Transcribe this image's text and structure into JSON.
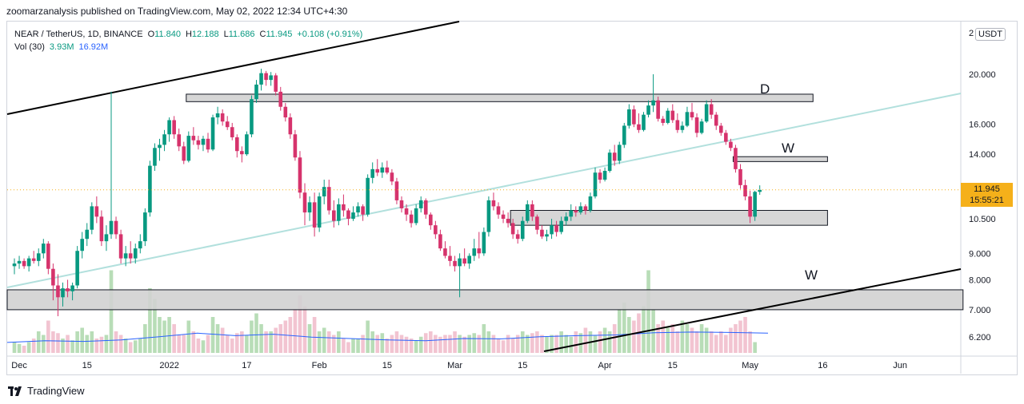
{
  "header": {
    "published_line": "zoomarzanalysis published on TradingView.com, May 02, 2022 12:34 UTC+4:30"
  },
  "legend": {
    "symbol": "NEAR / TetherUS, 1D, BINANCE",
    "open_label": "O",
    "open": "11.840",
    "high_label": "H",
    "high": "12.188",
    "low_label": "L",
    "low": "11.686",
    "close_label": "C",
    "close": "11.945",
    "change": "+0.108 (+0.91%)",
    "vol_label": "Vol (30)",
    "vol_value": "3.93M",
    "vol_ma": "16.92M"
  },
  "price_axis": {
    "unit": "USDT",
    "digit": "2",
    "current_price": "11.945",
    "countdown": "15:55:21"
  },
  "footer": {
    "brand": "TradingView"
  },
  "colors": {
    "up": "#089981",
    "down": "#d6336c",
    "up_vol": "#b8ddb7",
    "down_vol": "#f2c4d1",
    "trend_channel": "#000000",
    "mid_trend": "#b2e0dd",
    "zone_fill": "#d1d1d1",
    "vol_ma": "#2962ff",
    "price_tag": "#f5b01a",
    "price_line": "#f5b01a"
  },
  "chart_data": {
    "type": "candlestick",
    "scale": "log",
    "y_ticks": [
      20,
      16,
      14,
      10.5,
      9,
      8,
      7,
      6.2
    ],
    "y_tick_labels": [
      "20.000",
      "16.000",
      "14.000",
      "10.500",
      "9.000",
      "8.000",
      "7.000",
      "6.200"
    ],
    "x_ticks": [
      {
        "label": "Dec",
        "date": "2021-12-01"
      },
      {
        "label": "15",
        "date": "2021-12-15"
      },
      {
        "label": "2022",
        "date": "2022-01-01"
      },
      {
        "label": "17",
        "date": "2022-01-17"
      },
      {
        "label": "Feb",
        "date": "2022-02-01"
      },
      {
        "label": "15",
        "date": "2022-02-15"
      },
      {
        "label": "Mar",
        "date": "2022-03-01"
      },
      {
        "label": "15",
        "date": "2022-03-15"
      },
      {
        "label": "Apr",
        "date": "2022-04-01"
      },
      {
        "label": "15",
        "date": "2022-04-15"
      },
      {
        "label": "May",
        "date": "2022-05-01"
      },
      {
        "label": "16",
        "date": "2022-05-16"
      },
      {
        "label": "Jun",
        "date": "2022-06-01"
      }
    ],
    "start_date": "2021-11-30",
    "candles": [
      [
        8.5,
        8.8,
        8.2,
        8.6
      ],
      [
        8.6,
        8.9,
        8.4,
        8.7
      ],
      [
        8.7,
        8.8,
        8.4,
        8.5
      ],
      [
        8.5,
        8.9,
        8.3,
        8.8
      ],
      [
        8.8,
        9.1,
        8.6,
        8.7
      ],
      [
        8.7,
        9.2,
        8.5,
        9.0
      ],
      [
        9.0,
        9.6,
        8.8,
        9.4
      ],
      [
        9.4,
        9.5,
        8.2,
        8.4
      ],
      [
        8.4,
        8.6,
        7.3,
        7.8
      ],
      [
        7.8,
        8.2,
        6.8,
        7.4
      ],
      [
        7.4,
        7.9,
        7.1,
        7.7
      ],
      [
        7.7,
        8.0,
        7.4,
        7.6
      ],
      [
        7.6,
        7.9,
        7.3,
        7.8
      ],
      [
        7.8,
        9.3,
        7.7,
        9.1
      ],
      [
        9.1,
        9.9,
        8.8,
        9.6
      ],
      [
        9.6,
        10.3,
        9.3,
        10.0
      ],
      [
        10.0,
        11.3,
        9.8,
        11.1
      ],
      [
        11.1,
        11.6,
        10.3,
        10.6
      ],
      [
        10.6,
        10.9,
        9.3,
        9.5
      ],
      [
        9.5,
        10.2,
        9.1,
        9.8
      ],
      [
        9.8,
        18.5,
        9.6,
        10.4
      ],
      [
        10.4,
        10.6,
        9.6,
        9.8
      ],
      [
        9.8,
        10.0,
        8.6,
        8.8
      ],
      [
        8.8,
        9.3,
        8.5,
        9.0
      ],
      [
        9.0,
        9.5,
        8.6,
        8.8
      ],
      [
        8.8,
        9.4,
        8.6,
        9.2
      ],
      [
        9.2,
        9.8,
        9.0,
        9.5
      ],
      [
        9.5,
        11.0,
        9.3,
        10.8
      ],
      [
        10.8,
        13.6,
        10.6,
        13.3
      ],
      [
        13.3,
        14.7,
        13.0,
        14.4
      ],
      [
        14.4,
        15.0,
        13.6,
        14.6
      ],
      [
        14.6,
        15.6,
        14.2,
        15.3
      ],
      [
        15.3,
        16.5,
        14.8,
        16.3
      ],
      [
        16.3,
        16.6,
        15.0,
        15.3
      ],
      [
        15.3,
        15.7,
        14.2,
        14.5
      ],
      [
        14.5,
        14.8,
        13.4,
        13.6
      ],
      [
        13.6,
        15.5,
        13.5,
        15.2
      ],
      [
        15.2,
        15.8,
        14.6,
        14.9
      ],
      [
        14.9,
        15.2,
        14.3,
        14.6
      ],
      [
        14.6,
        15.2,
        14.2,
        15.0
      ],
      [
        15.0,
        15.4,
        14.1,
        14.3
      ],
      [
        14.3,
        16.7,
        14.2,
        16.5
      ],
      [
        16.5,
        17.3,
        16.0,
        16.8
      ],
      [
        16.8,
        17.1,
        15.9,
        16.2
      ],
      [
        16.2,
        16.6,
        15.6,
        15.8
      ],
      [
        15.8,
        16.1,
        14.9,
        15.1
      ],
      [
        15.1,
        15.3,
        13.8,
        14.2
      ],
      [
        14.2,
        14.5,
        13.5,
        14.0
      ],
      [
        14.0,
        15.5,
        13.9,
        15.3
      ],
      [
        15.3,
        18.2,
        15.1,
        17.9
      ],
      [
        17.9,
        19.5,
        17.6,
        19.1
      ],
      [
        19.1,
        20.5,
        18.6,
        20.1
      ],
      [
        20.1,
        20.3,
        19.0,
        19.5
      ],
      [
        19.5,
        20.2,
        19.0,
        19.9
      ],
      [
        19.9,
        20.1,
        18.2,
        18.5
      ],
      [
        18.5,
        18.9,
        17.0,
        17.3
      ],
      [
        17.3,
        17.6,
        16.2,
        16.5
      ],
      [
        16.5,
        16.8,
        15.0,
        15.3
      ],
      [
        15.3,
        15.6,
        13.6,
        13.8
      ],
      [
        13.8,
        14.2,
        11.5,
        11.8
      ],
      [
        11.8,
        12.3,
        10.2,
        10.8
      ],
      [
        10.8,
        11.6,
        10.4,
        11.3
      ],
      [
        11.3,
        11.8,
        9.7,
        10.1
      ],
      [
        10.1,
        11.8,
        9.9,
        11.6
      ],
      [
        11.6,
        12.5,
        11.2,
        12.1
      ],
      [
        12.1,
        12.5,
        10.7,
        10.9
      ],
      [
        10.9,
        11.4,
        10.1,
        10.4
      ],
      [
        10.4,
        11.5,
        10.2,
        11.2
      ],
      [
        11.2,
        11.7,
        10.6,
        10.9
      ],
      [
        10.9,
        11.0,
        10.2,
        10.5
      ],
      [
        10.5,
        11.1,
        10.4,
        10.8
      ],
      [
        10.8,
        11.3,
        10.6,
        11.1
      ],
      [
        11.1,
        11.2,
        10.4,
        10.7
      ],
      [
        10.7,
        12.8,
        10.6,
        12.6
      ],
      [
        12.6,
        13.5,
        12.3,
        13.1
      ],
      [
        13.1,
        13.7,
        12.7,
        12.9
      ],
      [
        12.9,
        13.5,
        12.6,
        13.2
      ],
      [
        13.2,
        13.6,
        12.8,
        12.9
      ],
      [
        12.9,
        13.1,
        12.2,
        12.4
      ],
      [
        12.4,
        12.6,
        11.2,
        11.4
      ],
      [
        11.4,
        11.6,
        10.8,
        11.0
      ],
      [
        11.0,
        11.2,
        10.4,
        10.7
      ],
      [
        10.7,
        10.9,
        10.1,
        10.3
      ],
      [
        10.3,
        11.2,
        10.2,
        11.0
      ],
      [
        11.0,
        11.6,
        10.8,
        11.4
      ],
      [
        11.4,
        11.5,
        10.5,
        10.7
      ],
      [
        10.7,
        10.8,
        10.0,
        10.2
      ],
      [
        10.2,
        10.4,
        9.6,
        9.8
      ],
      [
        9.8,
        10.0,
        9.1,
        9.2
      ],
      [
        9.2,
        9.5,
        8.8,
        8.9
      ],
      [
        8.9,
        9.3,
        8.5,
        8.7
      ],
      [
        8.7,
        8.9,
        8.3,
        8.5
      ],
      [
        8.5,
        9.0,
        7.4,
        8.8
      ],
      [
        8.8,
        9.2,
        8.5,
        8.6
      ],
      [
        8.6,
        9.0,
        8.4,
        8.9
      ],
      [
        8.9,
        9.6,
        8.7,
        9.2
      ],
      [
        9.2,
        9.9,
        8.8,
        9.0
      ],
      [
        9.0,
        10.1,
        8.9,
        9.9
      ],
      [
        9.9,
        11.6,
        9.7,
        11.4
      ],
      [
        11.4,
        11.8,
        10.9,
        11.1
      ],
      [
        11.1,
        11.3,
        10.5,
        10.7
      ],
      [
        10.7,
        10.9,
        10.3,
        10.5
      ],
      [
        10.5,
        10.8,
        10.1,
        10.3
      ],
      [
        10.3,
        10.5,
        9.6,
        9.8
      ],
      [
        9.8,
        10.0,
        9.4,
        9.6
      ],
      [
        9.6,
        10.6,
        9.5,
        10.4
      ],
      [
        10.4,
        11.4,
        10.3,
        11.2
      ],
      [
        11.2,
        11.4,
        10.4,
        10.6
      ],
      [
        10.6,
        10.7,
        9.8,
        10.0
      ],
      [
        10.0,
        10.2,
        9.6,
        9.7
      ],
      [
        9.7,
        10.0,
        9.5,
        9.8
      ],
      [
        9.8,
        10.5,
        9.6,
        10.2
      ],
      [
        10.2,
        10.4,
        9.7,
        9.9
      ],
      [
        9.9,
        10.6,
        9.8,
        10.4
      ],
      [
        10.4,
        10.8,
        10.2,
        10.6
      ],
      [
        10.6,
        11.2,
        10.4,
        10.9
      ],
      [
        10.9,
        11.1,
        10.6,
        10.8
      ],
      [
        10.8,
        11.3,
        10.7,
        11.1
      ],
      [
        11.1,
        11.2,
        10.7,
        10.9
      ],
      [
        10.9,
        11.8,
        10.8,
        11.6
      ],
      [
        11.6,
        13.2,
        11.5,
        12.9
      ],
      [
        12.9,
        13.1,
        12.3,
        12.5
      ],
      [
        12.5,
        13.2,
        12.4,
        13.0
      ],
      [
        13.0,
        14.3,
        12.9,
        14.1
      ],
      [
        14.1,
        14.6,
        13.3,
        13.6
      ],
      [
        13.6,
        14.8,
        13.4,
        14.6
      ],
      [
        14.6,
        16.1,
        14.4,
        15.9
      ],
      [
        15.9,
        17.5,
        15.7,
        17.1
      ],
      [
        17.1,
        17.4,
        15.8,
        16.0
      ],
      [
        16.0,
        16.8,
        15.4,
        15.6
      ],
      [
        15.6,
        16.9,
        15.5,
        16.7
      ],
      [
        16.7,
        17.8,
        16.5,
        17.4
      ],
      [
        17.4,
        20.0,
        16.9,
        17.8
      ],
      [
        17.8,
        18.1,
        16.2,
        16.4
      ],
      [
        16.4,
        16.6,
        15.9,
        16.1
      ],
      [
        16.1,
        17.2,
        16.0,
        17.0
      ],
      [
        17.0,
        17.5,
        16.1,
        16.3
      ],
      [
        16.3,
        16.8,
        15.4,
        15.6
      ],
      [
        15.6,
        16.2,
        15.4,
        15.9
      ],
      [
        15.9,
        17.3,
        15.8,
        16.9
      ],
      [
        16.9,
        17.6,
        16.3,
        16.5
      ],
      [
        16.5,
        16.8,
        15.1,
        15.4
      ],
      [
        15.4,
        16.4,
        15.3,
        16.2
      ],
      [
        16.2,
        17.8,
        16.1,
        17.5
      ],
      [
        17.5,
        17.9,
        16.4,
        16.7
      ],
      [
        16.7,
        16.9,
        15.6,
        15.9
      ],
      [
        15.9,
        16.1,
        15.2,
        15.4
      ],
      [
        15.4,
        15.6,
        14.6,
        14.8
      ],
      [
        14.8,
        15.0,
        14.2,
        14.4
      ],
      [
        14.4,
        14.6,
        12.9,
        13.1
      ],
      [
        13.1,
        13.4,
        12.0,
        12.2
      ],
      [
        12.2,
        12.5,
        11.4,
        11.6
      ],
      [
        11.6,
        11.9,
        10.3,
        10.6
      ],
      [
        10.6,
        11.9,
        10.4,
        11.84
      ],
      [
        11.84,
        12.188,
        11.686,
        11.945
      ]
    ],
    "volume_ma_points": [
      [
        0,
        0.29
      ],
      [
        0.05,
        0.34
      ],
      [
        0.1,
        0.32
      ],
      [
        0.15,
        0.36
      ],
      [
        0.2,
        0.45
      ],
      [
        0.25,
        0.55
      ],
      [
        0.3,
        0.48
      ],
      [
        0.35,
        0.52
      ],
      [
        0.4,
        0.44
      ],
      [
        0.45,
        0.4
      ],
      [
        0.5,
        0.36
      ],
      [
        0.55,
        0.34
      ],
      [
        0.6,
        0.4
      ],
      [
        0.65,
        0.39
      ],
      [
        0.7,
        0.45
      ],
      [
        0.75,
        0.48
      ],
      [
        0.8,
        0.5
      ],
      [
        0.85,
        0.56
      ],
      [
        0.9,
        0.58
      ],
      [
        0.95,
        0.57
      ],
      [
        1.0,
        0.55
      ]
    ],
    "volumes": [
      0.3,
      0.25,
      0.2,
      0.3,
      0.4,
      0.6,
      0.5,
      0.9,
      0.6,
      0.55,
      0.4,
      0.5,
      0.35,
      0.6,
      0.7,
      0.5,
      0.6,
      0.4,
      0.45,
      0.5,
      2.3,
      0.6,
      0.5,
      0.4,
      0.3,
      0.35,
      0.4,
      0.8,
      1.8,
      1.5,
      1.0,
      0.9,
      1.0,
      0.8,
      0.5,
      0.5,
      0.9,
      0.6,
      0.4,
      0.35,
      0.5,
      1.0,
      0.8,
      0.7,
      0.5,
      0.4,
      0.55,
      0.6,
      0.5,
      0.9,
      1.1,
      0.8,
      0.6,
      0.6,
      0.7,
      0.8,
      0.9,
      1.0,
      1.2,
      1.6,
      1.3,
      0.8,
      1.0,
      0.6,
      0.7,
      0.6,
      0.5,
      0.6,
      0.4,
      0.3,
      0.4,
      0.4,
      0.5,
      0.9,
      0.6,
      0.5,
      0.55,
      0.4,
      0.5,
      0.6,
      0.5,
      0.45,
      0.4,
      0.35,
      0.45,
      0.55,
      0.6,
      0.5,
      0.45,
      0.5,
      0.5,
      0.6,
      0.5,
      0.45,
      0.5,
      0.55,
      0.5,
      0.8,
      0.6,
      0.5,
      0.4,
      0.35,
      0.5,
      0.4,
      0.5,
      0.6,
      0.5,
      0.55,
      0.6,
      0.5,
      0.45,
      0.5,
      0.5,
      0.6,
      0.5,
      0.45,
      0.6,
      0.55,
      0.7,
      0.6,
      0.5,
      0.6,
      0.7,
      0.6,
      0.8,
      1.2,
      1.4,
      1.0,
      0.9,
      1.1,
      1.3,
      2.3,
      1.2,
      0.8,
      0.9,
      0.7,
      0.8,
      0.6,
      0.9,
      0.8,
      0.7,
      0.6,
      0.8,
      0.7,
      0.6,
      0.5,
      0.6,
      0.5,
      0.7,
      0.8,
      0.9,
      1.0,
      0.6,
      0.3
    ],
    "zones": [
      {
        "label": "",
        "bottom": 7.0,
        "top": 7.65,
        "x_start_index": -1,
        "x_end_index": 196
      },
      {
        "label": "D",
        "bottom": 17.7,
        "top": 18.3,
        "x_start_index": 36,
        "x_end_index": 165
      },
      {
        "label": "W",
        "bottom": 13.55,
        "top": 13.85,
        "x_start_index": 149,
        "x_end_index": 168
      },
      {
        "label": "",
        "bottom": 10.2,
        "top": 10.9,
        "x_start_index": 103,
        "x_end_index": 168
      }
    ],
    "annotations": [
      {
        "text": "D"
      },
      {
        "text": "W"
      },
      {
        "text": "W"
      }
    ]
  }
}
